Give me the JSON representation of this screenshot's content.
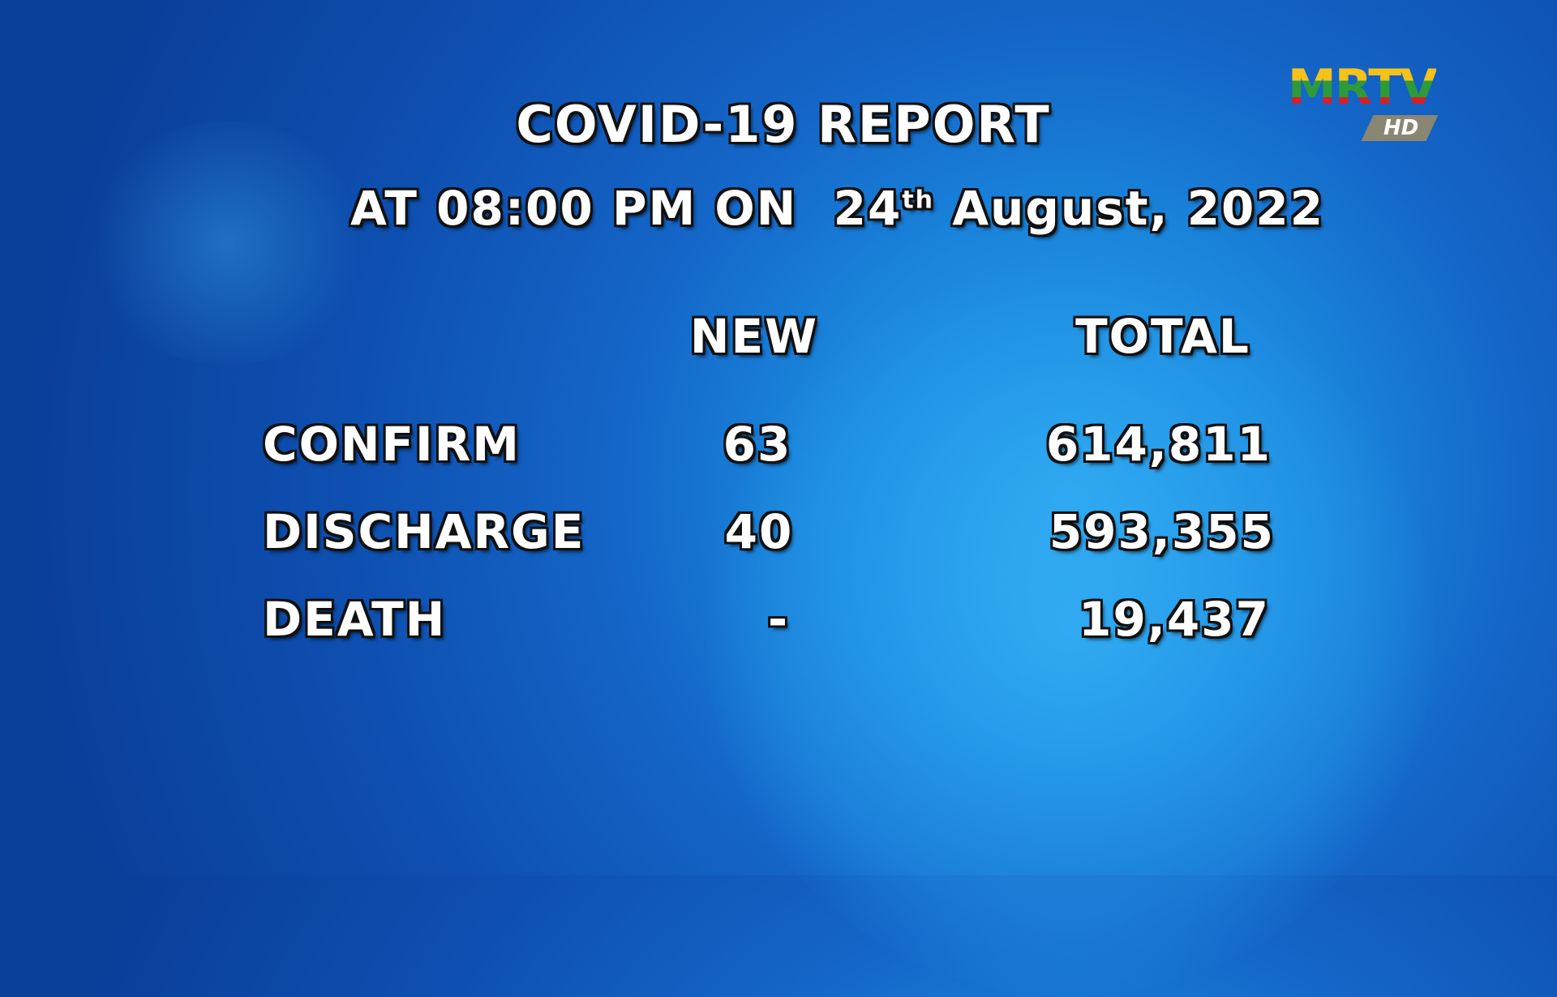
{
  "logo": {
    "text": "MRTV",
    "badge": "HD",
    "colors": [
      "#f5c21a",
      "#2e9a3a",
      "#d2202a"
    ]
  },
  "title": "COVID-19 REPORT",
  "subtitle": {
    "prefix": "AT 08:00 PM ON",
    "day": "24",
    "suffix": "th",
    "rest": "August, 2022"
  },
  "columns": {
    "new": "NEW",
    "total": "TOTAL"
  },
  "rows": [
    {
      "label": "CONFIRM",
      "new": "63",
      "total": "614,811"
    },
    {
      "label": "DISCHARGE",
      "new": "40",
      "total": "593,355"
    },
    {
      "label": "DEATH",
      "new": "-",
      "total": "19,437"
    }
  ]
}
